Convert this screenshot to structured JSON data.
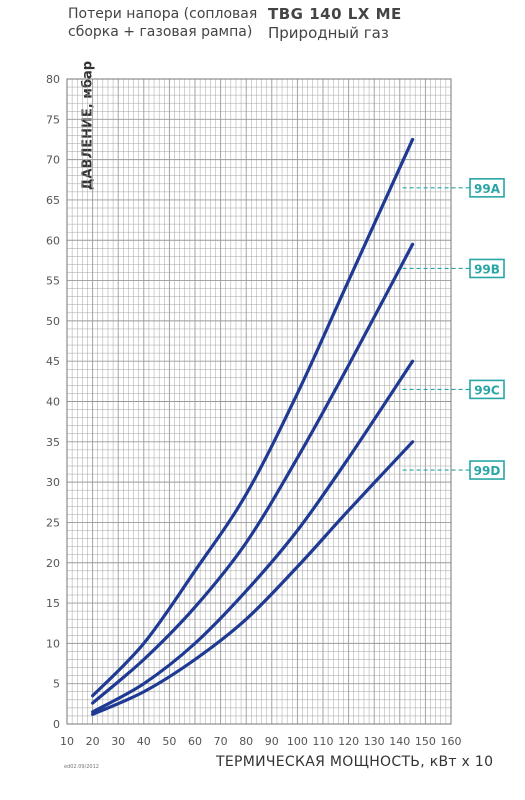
{
  "header": {
    "left_line1": "Потери напора (сопловая",
    "left_line2": "сборка + газовая рампа)",
    "model": "TBG 140 LX ME",
    "fuel": "Природный газ"
  },
  "footnote": "ed02.09/2012",
  "colors": {
    "curve": "#1f3a93",
    "label": "#2aa5a5",
    "grid": "#9a9a9a"
  },
  "chart_data": {
    "type": "line",
    "title": "TBG 140 LX ME",
    "subtitle": "Природный газ",
    "xlabel": "ТЕРМИЧЕСКАЯ МОЩНОСТЬ, кВт х 10",
    "ylabel": "ДАВЛЕНИЕ, мбар",
    "xlim": [
      10,
      160
    ],
    "ylim": [
      0,
      80
    ],
    "xticks": [
      10,
      20,
      30,
      40,
      50,
      60,
      70,
      80,
      90,
      100,
      110,
      120,
      130,
      140,
      150,
      160
    ],
    "yticks": [
      0,
      5,
      10,
      15,
      20,
      25,
      30,
      35,
      40,
      45,
      50,
      55,
      60,
      65,
      70,
      75,
      80
    ],
    "grid": true,
    "series": [
      {
        "name": "99A",
        "x": [
          20,
          40,
          60,
          80,
          100,
          120,
          145
        ],
        "y": [
          3.5,
          10.0,
          19.0,
          28.5,
          41.0,
          55.0,
          72.5
        ],
        "label_y": 66.5
      },
      {
        "name": "99B",
        "x": [
          20,
          40,
          60,
          80,
          100,
          120,
          145
        ],
        "y": [
          2.6,
          8.0,
          14.5,
          22.5,
          33.0,
          44.5,
          59.5
        ],
        "label_y": 56.5
      },
      {
        "name": "99C",
        "x": [
          20,
          40,
          60,
          80,
          100,
          120,
          145
        ],
        "y": [
          1.5,
          5.0,
          10.0,
          16.5,
          24.0,
          33.0,
          45.0
        ],
        "label_y": 41.5
      },
      {
        "name": "99D",
        "x": [
          20,
          40,
          60,
          80,
          100,
          120,
          145
        ],
        "y": [
          1.2,
          4.0,
          8.0,
          13.0,
          19.5,
          26.5,
          35.0
        ],
        "label_y": 31.5
      }
    ]
  }
}
